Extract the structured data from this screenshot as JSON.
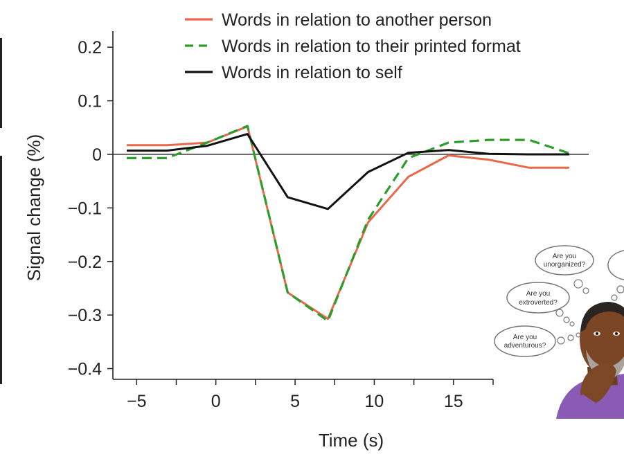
{
  "chart_data": {
    "type": "line",
    "title": "",
    "xlabel": "Time (s)",
    "ylabel": "Signal change (%)",
    "xlim": [
      -6.5,
      17.5
    ],
    "ylim": [
      -0.42,
      0.23
    ],
    "x_ticks": [
      -5,
      0,
      5,
      10,
      15
    ],
    "x_tick_labels": [
      "−5",
      "0",
      "5",
      "10",
      "15"
    ],
    "y_ticks": [
      0.2,
      0.1,
      0,
      -0.1,
      -0.2,
      -0.3,
      -0.4
    ],
    "y_tick_labels": [
      "0.2",
      "0.1",
      "0",
      "−0.1",
      "−0.2",
      "−0.3",
      "−0.4"
    ],
    "zero_line": true,
    "grid": false,
    "legend_position": "top",
    "series": [
      {
        "name": "Words in relation to another person",
        "color": "#e8684a",
        "style": "solid",
        "x": [
          -5,
          -2.5,
          0,
          2.5,
          5,
          7.5,
          10,
          12.5,
          15,
          17.5,
          20,
          22.5
        ],
        "y": [
          0.017,
          0.017,
          0.022,
          0.052,
          -0.258,
          -0.307,
          -0.127,
          -0.042,
          -0.002,
          -0.01,
          -0.025,
          -0.025
        ]
      },
      {
        "name": "Words in relation to their printed format",
        "color": "#2a9d2a",
        "style": "dashed",
        "x": [
          -5,
          -2.5,
          0,
          2.5,
          5,
          7.5,
          10,
          12.5,
          15,
          17.5,
          20,
          22.5
        ],
        "y": [
          -0.007,
          -0.007,
          0.022,
          0.053,
          -0.258,
          -0.311,
          -0.122,
          -0.007,
          0.022,
          0.027,
          0.027,
          0.002
        ]
      },
      {
        "name": "Words in relation to self",
        "color": "#111111",
        "style": "solid",
        "x": [
          -5,
          -2.5,
          0,
          2.5,
          5,
          7.5,
          10,
          12.5,
          15,
          17.5,
          20,
          22.5
        ],
        "y": [
          0.007,
          0.007,
          0.016,
          0.038,
          -0.08,
          -0.102,
          -0.033,
          0.003,
          0.008,
          0.001,
          0.0,
          0.0
        ]
      }
    ]
  },
  "illustration": {
    "bubbles": [
      "Are you unorganized?",
      "Are you extroverted?",
      "Are you adventurous?"
    ],
    "bubble_lines": [
      [
        "Are you",
        "unorganized?"
      ],
      [
        "Are you",
        "extroverted?"
      ],
      [
        "Are you",
        "adventurous?"
      ]
    ]
  }
}
